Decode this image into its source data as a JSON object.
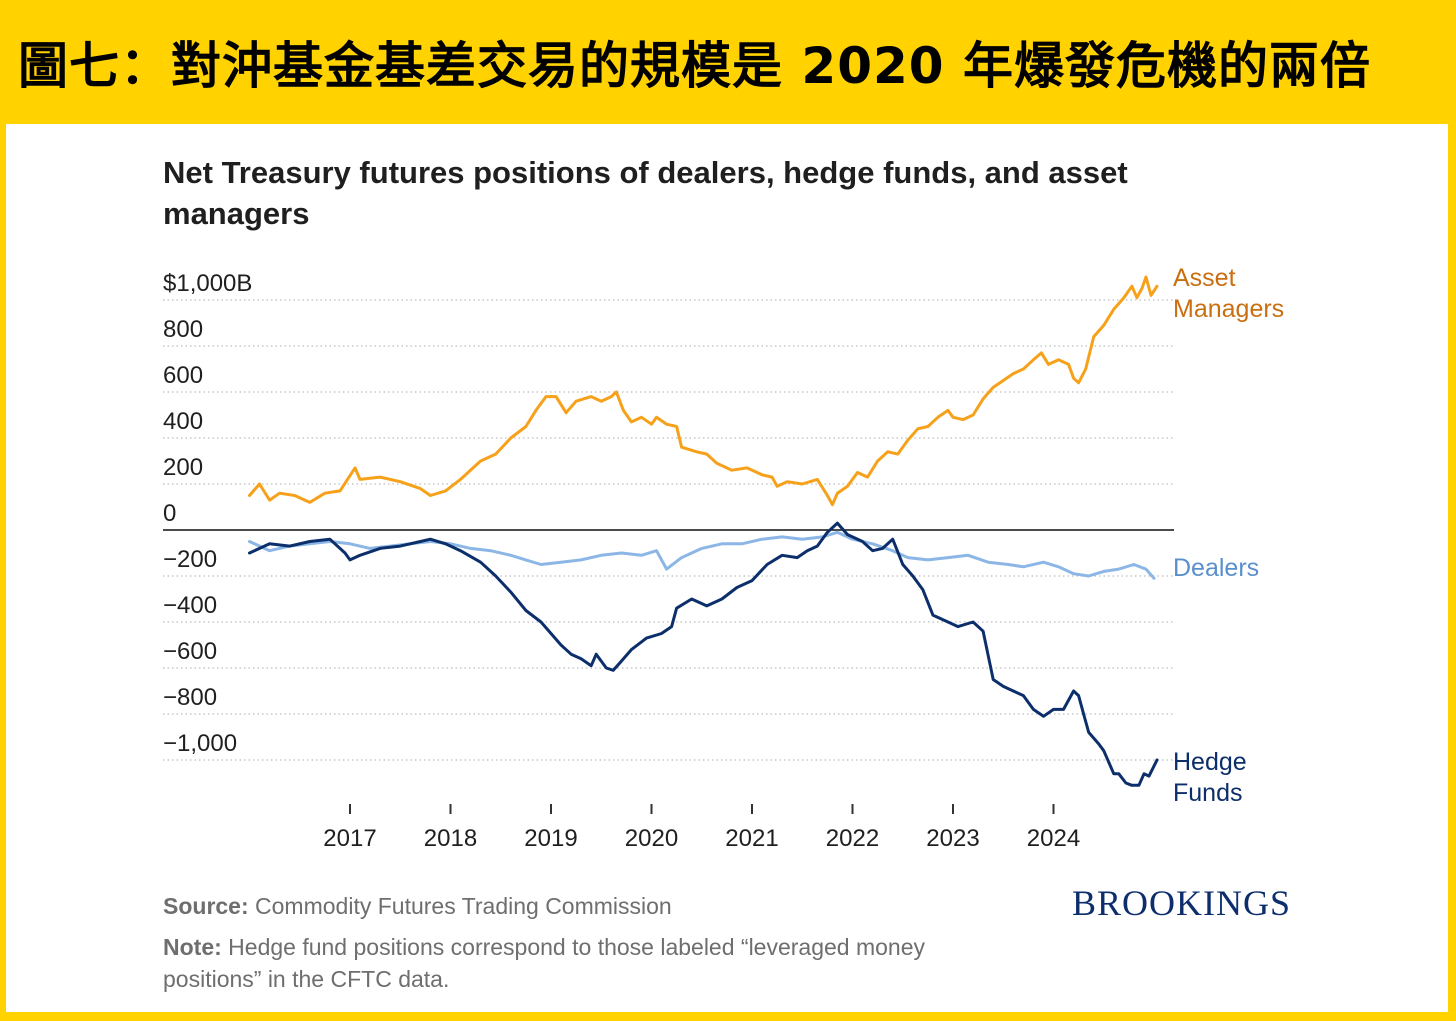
{
  "banner": {
    "title": "圖七：對沖基金基差交易的規模是 2020 年爆發危機的兩倍"
  },
  "chart_data": {
    "type": "line",
    "title": "Net Treasury futures positions of dealers, hedge funds, and asset managers",
    "xlabel": "",
    "ylabel": "",
    "xlim": [
      2016,
      2025
    ],
    "ylim": [
      -1200,
      1000
    ],
    "y_ticks": [
      1000,
      800,
      600,
      400,
      200,
      0,
      -200,
      -400,
      -600,
      -800,
      -1000
    ],
    "y_tick_labels": [
      "$1,000B",
      "800",
      "600",
      "400",
      "200",
      "0",
      "−200",
      "−400",
      "−600",
      "−800",
      "−1,000"
    ],
    "x_ticks": [
      2017,
      2018,
      2019,
      2020,
      2021,
      2022,
      2023,
      2024
    ],
    "x_tick_labels": [
      "2017",
      "2018",
      "2019",
      "2020",
      "2021",
      "2022",
      "2023",
      "2024"
    ],
    "grid": "horizontal dotted",
    "series": [
      {
        "name": "Asset Managers",
        "label": [
          "Asset",
          "Managers"
        ],
        "color": "#f7a11a",
        "label_color": "#c96f10",
        "points": [
          [
            2016.0,
            150
          ],
          [
            2016.1,
            200
          ],
          [
            2016.2,
            130
          ],
          [
            2016.3,
            160
          ],
          [
            2016.45,
            150
          ],
          [
            2016.6,
            120
          ],
          [
            2016.75,
            160
          ],
          [
            2016.9,
            170
          ],
          [
            2017.05,
            270
          ],
          [
            2017.1,
            220
          ],
          [
            2017.3,
            230
          ],
          [
            2017.5,
            210
          ],
          [
            2017.7,
            180
          ],
          [
            2017.8,
            150
          ],
          [
            2017.95,
            170
          ],
          [
            2018.1,
            220
          ],
          [
            2018.3,
            300
          ],
          [
            2018.45,
            330
          ],
          [
            2018.6,
            400
          ],
          [
            2018.75,
            450
          ],
          [
            2018.85,
            520
          ],
          [
            2018.95,
            580
          ],
          [
            2019.05,
            580
          ],
          [
            2019.15,
            510
          ],
          [
            2019.25,
            560
          ],
          [
            2019.4,
            580
          ],
          [
            2019.5,
            560
          ],
          [
            2019.6,
            580
          ],
          [
            2019.65,
            600
          ],
          [
            2019.72,
            520
          ],
          [
            2019.8,
            470
          ],
          [
            2019.9,
            490
          ],
          [
            2020.0,
            460
          ],
          [
            2020.05,
            490
          ],
          [
            2020.15,
            460
          ],
          [
            2020.25,
            450
          ],
          [
            2020.3,
            360
          ],
          [
            2020.45,
            340
          ],
          [
            2020.55,
            330
          ],
          [
            2020.65,
            290
          ],
          [
            2020.8,
            260
          ],
          [
            2020.95,
            270
          ],
          [
            2021.1,
            240
          ],
          [
            2021.2,
            230
          ],
          [
            2021.25,
            190
          ],
          [
            2021.35,
            210
          ],
          [
            2021.5,
            200
          ],
          [
            2021.65,
            220
          ],
          [
            2021.75,
            150
          ],
          [
            2021.8,
            110
          ],
          [
            2021.85,
            160
          ],
          [
            2021.95,
            190
          ],
          [
            2022.05,
            250
          ],
          [
            2022.15,
            230
          ],
          [
            2022.25,
            300
          ],
          [
            2022.35,
            340
          ],
          [
            2022.45,
            330
          ],
          [
            2022.55,
            390
          ],
          [
            2022.65,
            440
          ],
          [
            2022.75,
            450
          ],
          [
            2022.85,
            490
          ],
          [
            2022.95,
            520
          ],
          [
            2023.0,
            490
          ],
          [
            2023.1,
            480
          ],
          [
            2023.2,
            500
          ],
          [
            2023.3,
            570
          ],
          [
            2023.4,
            620
          ],
          [
            2023.5,
            650
          ],
          [
            2023.6,
            680
          ],
          [
            2023.7,
            700
          ],
          [
            2023.8,
            740
          ],
          [
            2023.88,
            770
          ],
          [
            2023.95,
            720
          ],
          [
            2024.05,
            740
          ],
          [
            2024.15,
            720
          ],
          [
            2024.2,
            660
          ],
          [
            2024.25,
            640
          ],
          [
            2024.32,
            700
          ],
          [
            2024.4,
            840
          ],
          [
            2024.5,
            890
          ],
          [
            2024.6,
            960
          ],
          [
            2024.7,
            1010
          ],
          [
            2024.78,
            1060
          ],
          [
            2024.83,
            1010
          ],
          [
            2024.88,
            1050
          ],
          [
            2024.92,
            1100
          ],
          [
            2024.97,
            1020
          ],
          [
            2025.03,
            1060
          ]
        ]
      },
      {
        "name": "Dealers",
        "label": [
          "Dealers"
        ],
        "color": "#8cb6e6",
        "label_color": "#5b8fcc",
        "points": [
          [
            2016.0,
            -50
          ],
          [
            2016.2,
            -90
          ],
          [
            2016.4,
            -70
          ],
          [
            2016.6,
            -60
          ],
          [
            2016.8,
            -50
          ],
          [
            2017.0,
            -60
          ],
          [
            2017.2,
            -80
          ],
          [
            2017.4,
            -70
          ],
          [
            2017.6,
            -60
          ],
          [
            2017.8,
            -50
          ],
          [
            2018.0,
            -60
          ],
          [
            2018.2,
            -80
          ],
          [
            2018.4,
            -90
          ],
          [
            2018.6,
            -110
          ],
          [
            2018.75,
            -130
          ],
          [
            2018.9,
            -150
          ],
          [
            2019.1,
            -140
          ],
          [
            2019.3,
            -130
          ],
          [
            2019.5,
            -110
          ],
          [
            2019.7,
            -100
          ],
          [
            2019.9,
            -110
          ],
          [
            2020.05,
            -90
          ],
          [
            2020.15,
            -170
          ],
          [
            2020.3,
            -120
          ],
          [
            2020.5,
            -80
          ],
          [
            2020.7,
            -60
          ],
          [
            2020.9,
            -60
          ],
          [
            2021.1,
            -40
          ],
          [
            2021.3,
            -30
          ],
          [
            2021.5,
            -40
          ],
          [
            2021.7,
            -30
          ],
          [
            2021.85,
            -10
          ],
          [
            2022.0,
            -40
          ],
          [
            2022.2,
            -60
          ],
          [
            2022.4,
            -90
          ],
          [
            2022.55,
            -120
          ],
          [
            2022.75,
            -130
          ],
          [
            2022.95,
            -120
          ],
          [
            2023.15,
            -110
          ],
          [
            2023.35,
            -140
          ],
          [
            2023.55,
            -150
          ],
          [
            2023.7,
            -160
          ],
          [
            2023.9,
            -140
          ],
          [
            2024.05,
            -160
          ],
          [
            2024.2,
            -190
          ],
          [
            2024.35,
            -200
          ],
          [
            2024.5,
            -180
          ],
          [
            2024.65,
            -170
          ],
          [
            2024.8,
            -150
          ],
          [
            2024.92,
            -170
          ],
          [
            2025.0,
            -210
          ]
        ]
      },
      {
        "name": "Hedge Funds",
        "label": [
          "Hedge",
          "Funds"
        ],
        "color": "#0c2f6b",
        "label_color": "#0c2f6b",
        "points": [
          [
            2016.0,
            -100
          ],
          [
            2016.1,
            -80
          ],
          [
            2016.2,
            -60
          ],
          [
            2016.4,
            -70
          ],
          [
            2016.6,
            -50
          ],
          [
            2016.8,
            -40
          ],
          [
            2016.95,
            -100
          ],
          [
            2017.0,
            -130
          ],
          [
            2017.1,
            -110
          ],
          [
            2017.3,
            -80
          ],
          [
            2017.5,
            -70
          ],
          [
            2017.7,
            -50
          ],
          [
            2017.8,
            -40
          ],
          [
            2017.95,
            -60
          ],
          [
            2018.1,
            -90
          ],
          [
            2018.3,
            -140
          ],
          [
            2018.45,
            -200
          ],
          [
            2018.6,
            -270
          ],
          [
            2018.75,
            -350
          ],
          [
            2018.9,
            -400
          ],
          [
            2019.0,
            -450
          ],
          [
            2019.1,
            -500
          ],
          [
            2019.2,
            -540
          ],
          [
            2019.3,
            -560
          ],
          [
            2019.4,
            -590
          ],
          [
            2019.45,
            -540
          ],
          [
            2019.55,
            -600
          ],
          [
            2019.62,
            -610
          ],
          [
            2019.7,
            -570
          ],
          [
            2019.8,
            -520
          ],
          [
            2019.95,
            -470
          ],
          [
            2020.1,
            -450
          ],
          [
            2020.2,
            -420
          ],
          [
            2020.25,
            -340
          ],
          [
            2020.4,
            -300
          ],
          [
            2020.55,
            -330
          ],
          [
            2020.7,
            -300
          ],
          [
            2020.85,
            -250
          ],
          [
            2021.0,
            -220
          ],
          [
            2021.15,
            -150
          ],
          [
            2021.3,
            -110
          ],
          [
            2021.45,
            -120
          ],
          [
            2021.55,
            -90
          ],
          [
            2021.65,
            -70
          ],
          [
            2021.75,
            -10
          ],
          [
            2021.85,
            30
          ],
          [
            2021.95,
            -20
          ],
          [
            2022.1,
            -50
          ],
          [
            2022.2,
            -90
          ],
          [
            2022.3,
            -80
          ],
          [
            2022.4,
            -40
          ],
          [
            2022.5,
            -150
          ],
          [
            2022.6,
            -200
          ],
          [
            2022.7,
            -260
          ],
          [
            2022.8,
            -370
          ],
          [
            2022.95,
            -400
          ],
          [
            2023.05,
            -420
          ],
          [
            2023.2,
            -400
          ],
          [
            2023.3,
            -440
          ],
          [
            2023.4,
            -650
          ],
          [
            2023.5,
            -680
          ],
          [
            2023.6,
            -700
          ],
          [
            2023.7,
            -720
          ],
          [
            2023.8,
            -780
          ],
          [
            2023.9,
            -810
          ],
          [
            2024.0,
            -780
          ],
          [
            2024.1,
            -780
          ],
          [
            2024.2,
            -700
          ],
          [
            2024.25,
            -720
          ],
          [
            2024.3,
            -800
          ],
          [
            2024.35,
            -880
          ],
          [
            2024.45,
            -930
          ],
          [
            2024.5,
            -960
          ],
          [
            2024.6,
            -1060
          ],
          [
            2024.65,
            -1060
          ],
          [
            2024.72,
            -1100
          ],
          [
            2024.78,
            -1110
          ],
          [
            2024.85,
            -1110
          ],
          [
            2024.9,
            -1060
          ],
          [
            2024.95,
            -1070
          ],
          [
            2025.03,
            -1000
          ]
        ]
      }
    ]
  },
  "footer": {
    "source_label": "Source:",
    "source_text": " Commodity Futures Trading Commission",
    "note_label": "Note:",
    "note_text": " Hedge fund positions correspond to those labeled “leveraged money positions” in the CFTC data.",
    "logo": "BROOKINGS"
  }
}
